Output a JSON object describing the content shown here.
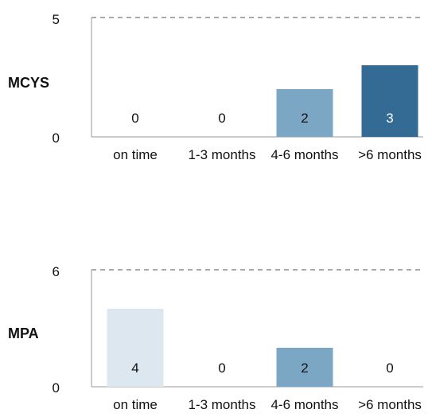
{
  "chart_data": [
    {
      "type": "bar",
      "panel_label": "MCYS",
      "categories": [
        "on time",
        "1-3 months",
        "4-6 months",
        ">6 months"
      ],
      "values": [
        0,
        0,
        2,
        3
      ],
      "ylim": [
        0,
        5
      ],
      "yticks": [
        "0",
        "5"
      ],
      "bar_colors": [
        "#dde7f0",
        "#b2c8da",
        "#7ca7c4",
        "#336b95"
      ],
      "gridline": "dashed at top"
    },
    {
      "type": "bar",
      "panel_label": "MPA",
      "categories": [
        "on time",
        "1-3 months",
        "4-6 months",
        ">6 months"
      ],
      "values": [
        4,
        0,
        2,
        0
      ],
      "ylim": [
        0,
        6
      ],
      "yticks": [
        "0",
        "6"
      ],
      "bar_colors": [
        "#dde7f0",
        "#b2c8da",
        "#7ca7c4",
        "#336b95"
      ],
      "gridline": "dashed at top"
    }
  ]
}
